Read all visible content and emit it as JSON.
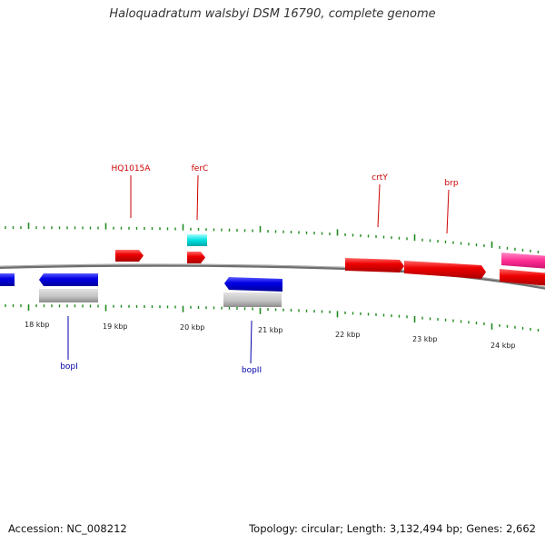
{
  "title": "Haloquadratum walsbyi DSM 16790, complete genome",
  "footer": {
    "accession": "Accession: NC_008212",
    "summary": "Topology: circular; Length: 3,132,494 bp; Genes: 2,662"
  },
  "colors": {
    "backbone": "#7a7a7a",
    "tick": "#1f8a1f",
    "forward_gene": "#ee0000",
    "reverse_gene": "#0000e0",
    "rna": "#00dddd",
    "highlight": "#ff3399",
    "pseudo": "#bdbdbd",
    "forward_label": "#cc0000",
    "reverse_label": "#0000aa"
  },
  "kbp_labels": [
    "18 kbp",
    "19 kbp",
    "20 kbp",
    "21 kbp",
    "22 kbp",
    "23 kbp",
    "24 kbp"
  ],
  "gene_labels": {
    "forward": [
      "HQ1015A",
      "ferC",
      "crtY",
      "brp"
    ],
    "reverse": [
      "bopI",
      "bopII"
    ]
  }
}
